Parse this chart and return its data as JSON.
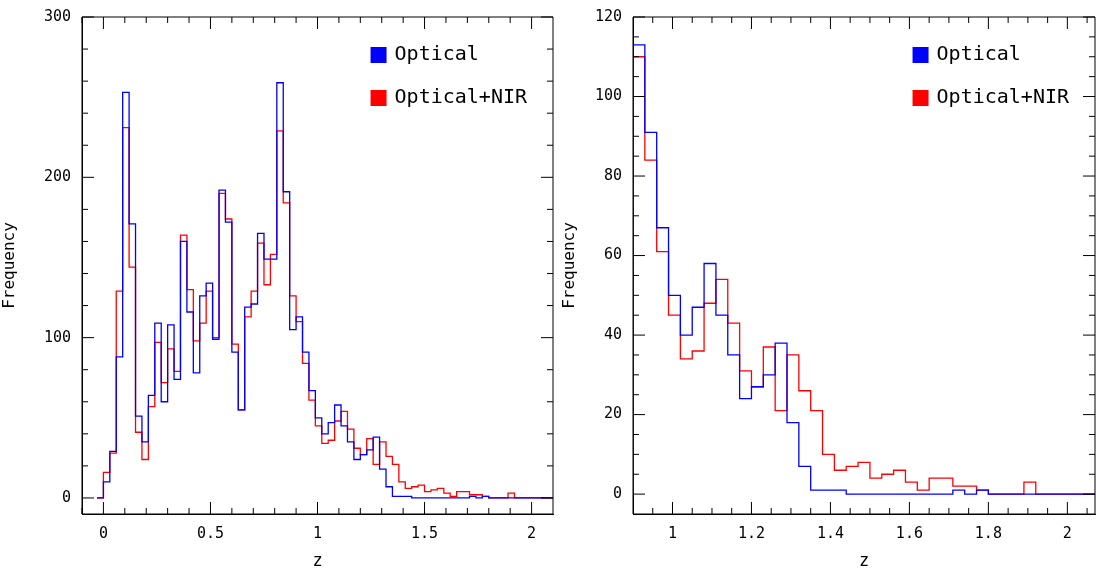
{
  "chart_data": [
    {
      "type": "histogram",
      "xlabel": "z",
      "ylabel": "Frequency",
      "legend": "top right",
      "grid": false,
      "bins": [
        -0.03,
        0,
        0.03,
        0.06,
        0.09,
        0.12,
        0.15,
        0.18,
        0.21,
        0.24,
        0.27,
        0.3,
        0.33,
        0.36,
        0.39,
        0.42,
        0.45,
        0.48,
        0.51,
        0.54,
        0.57,
        0.6,
        0.63,
        0.66,
        0.69,
        0.72,
        0.75,
        0.78,
        0.81,
        0.84,
        0.87,
        0.9,
        0.93,
        0.96,
        0.99,
        1.02,
        1.05,
        1.08,
        1.11,
        1.14,
        1.17,
        1.2,
        1.23,
        1.26,
        1.29,
        1.32,
        1.35,
        1.38,
        1.41,
        1.44,
        1.47,
        1.5,
        1.53,
        1.56,
        1.59,
        1.62,
        1.65,
        1.68,
        1.71,
        1.74,
        1.77,
        1.8,
        1.83,
        1.86,
        1.89,
        1.92,
        1.95,
        1.98,
        2.01,
        2.04,
        2.07,
        2.1
      ],
      "series": [
        {
          "name": "Optical",
          "color": "#0000ff",
          "values": [
            0,
            10,
            29,
            88,
            253,
            171,
            51,
            35,
            64,
            109,
            60,
            108,
            74,
            160,
            116,
            78,
            126,
            134,
            99,
            192,
            172,
            91,
            55,
            119,
            121,
            165,
            149,
            149,
            259,
            191,
            105,
            113,
            91,
            67,
            50,
            40,
            47,
            58,
            45,
            35,
            24,
            27,
            30,
            38,
            18,
            7,
            1,
            1,
            1,
            0,
            0,
            0,
            0,
            0,
            0,
            0,
            0,
            0,
            1,
            0,
            1,
            0,
            0,
            0,
            0,
            0,
            0,
            0,
            0,
            0,
            0
          ]
        },
        {
          "name": "Optical+NIR",
          "color": "#ff0000",
          "values": [
            0,
            16,
            28,
            129,
            231,
            144,
            41,
            24,
            57,
            97,
            72,
            93,
            79,
            164,
            130,
            98,
            109,
            129,
            100,
            190,
            174,
            96,
            55,
            113,
            129,
            159,
            133,
            152,
            229,
            184,
            126,
            110,
            84,
            61,
            45,
            34,
            36,
            48,
            54,
            43,
            31,
            27,
            37,
            21,
            35,
            26,
            21,
            10,
            6,
            7,
            8,
            4,
            5,
            6,
            3,
            1,
            4,
            4,
            2,
            2,
            1,
            0,
            0,
            0,
            3,
            0,
            0,
            0,
            0,
            0,
            0
          ]
        }
      ],
      "xlim": [
        -0.1,
        2.1
      ],
      "ylim": [
        -10,
        300
      ],
      "xticks": [
        {
          "value": -0.1,
          "label": null
        },
        0,
        {
          "value": 0.1,
          "label": null
        },
        {
          "value": 0.2,
          "label": null
        },
        {
          "value": 0.3,
          "label": null
        },
        {
          "value": 0.4,
          "label": null
        },
        0.5,
        {
          "value": 0.6,
          "label": null
        },
        {
          "value": 0.7,
          "label": null
        },
        {
          "value": 0.8,
          "label": null
        },
        {
          "value": 0.9,
          "label": null
        },
        1,
        {
          "value": 1.1,
          "label": null
        },
        {
          "value": 1.2,
          "label": null
        },
        {
          "value": 1.3,
          "label": null
        },
        {
          "value": 1.4,
          "label": null
        },
        1.5,
        {
          "value": 1.6,
          "label": null
        },
        {
          "value": 1.7,
          "label": null
        },
        {
          "value": 1.8,
          "label": null
        },
        {
          "value": 1.9,
          "label": null
        },
        2
      ],
      "yticks": [
        0,
        {
          "value": 20,
          "label": null
        },
        {
          "value": 40,
          "label": null
        },
        {
          "value": 60,
          "label": null
        },
        {
          "value": 80,
          "label": null
        },
        100,
        {
          "value": 120,
          "label": null
        },
        {
          "value": 140,
          "label": null
        },
        {
          "value": 160,
          "label": null
        },
        {
          "value": 180,
          "label": null
        },
        200,
        {
          "value": 220,
          "label": null
        },
        {
          "value": 240,
          "label": null
        },
        {
          "value": 260,
          "label": null
        },
        {
          "value": 280,
          "label": null
        },
        300
      ]
    },
    {
      "type": "histogram",
      "xlabel": "z",
      "ylabel": "Frequency",
      "legend": "top right",
      "grid": false,
      "bins": [
        0.9,
        0.93,
        0.96,
        0.99,
        1.02,
        1.05,
        1.08,
        1.11,
        1.14,
        1.17,
        1.2,
        1.23,
        1.26,
        1.29,
        1.32,
        1.35,
        1.38,
        1.41,
        1.44,
        1.47,
        1.5,
        1.53,
        1.56,
        1.59,
        1.62,
        1.65,
        1.68,
        1.71,
        1.74,
        1.77,
        1.8,
        1.83,
        1.86,
        1.89,
        1.92,
        1.95,
        1.98,
        2.01,
        2.04,
        2.07
      ],
      "series": [
        {
          "name": "Optical",
          "color": "#0000ff",
          "values": [
            113,
            91,
            67,
            50,
            40,
            47,
            58,
            45,
            35,
            24,
            27,
            30,
            38,
            18,
            7,
            1,
            1,
            1,
            0,
            0,
            0,
            0,
            0,
            0,
            0,
            0,
            0,
            1,
            0,
            1,
            0,
            0,
            0,
            0,
            0,
            0,
            0,
            0,
            0
          ]
        },
        {
          "name": "Optical+NIR",
          "color": "#ff0000",
          "values": [
            110,
            84,
            61,
            45,
            34,
            36,
            48,
            54,
            43,
            31,
            27,
            37,
            21,
            35,
            26,
            21,
            10,
            6,
            7,
            8,
            4,
            5,
            6,
            3,
            1,
            4,
            4,
            2,
            2,
            1,
            0,
            0,
            0,
            3,
            0,
            0,
            0,
            0,
            0
          ]
        }
      ],
      "xlim": [
        0.9,
        2.07
      ],
      "ylim": [
        -5,
        120
      ],
      "xticks": [
        {
          "value": 0.95,
          "label": null
        },
        1,
        {
          "value": 1.05,
          "label": null
        },
        {
          "value": 1.1,
          "label": null
        },
        {
          "value": 1.15,
          "label": null
        },
        1.2,
        {
          "value": 1.25,
          "label": null
        },
        {
          "value": 1.3,
          "label": null
        },
        {
          "value": 1.35,
          "label": null
        },
        1.4,
        {
          "value": 1.45,
          "label": null
        },
        {
          "value": 1.5,
          "label": null
        },
        {
          "value": 1.55,
          "label": null
        },
        1.6,
        {
          "value": 1.65,
          "label": null
        },
        {
          "value": 1.7,
          "label": null
        },
        {
          "value": 1.75,
          "label": null
        },
        1.8,
        {
          "value": 1.85,
          "label": null
        },
        {
          "value": 1.9,
          "label": null
        },
        {
          "value": 1.95,
          "label": null
        },
        2,
        {
          "value": 2.05,
          "label": null
        }
      ],
      "yticks": [
        0,
        {
          "value": 5,
          "label": null
        },
        {
          "value": 10,
          "label": null
        },
        {
          "value": 15,
          "label": null
        },
        20,
        {
          "value": 25,
          "label": null
        },
        {
          "value": 30,
          "label": null
        },
        {
          "value": 35,
          "label": null
        },
        40,
        {
          "value": 45,
          "label": null
        },
        {
          "value": 50,
          "label": null
        },
        {
          "value": 55,
          "label": null
        },
        60,
        {
          "value": 65,
          "label": null
        },
        {
          "value": 70,
          "label": null
        },
        {
          "value": 75,
          "label": null
        },
        80,
        {
          "value": 85,
          "label": null
        },
        {
          "value": 90,
          "label": null
        },
        {
          "value": 95,
          "label": null
        },
        100,
        {
          "value": 105,
          "label": null
        },
        {
          "value": 110,
          "label": null
        },
        {
          "value": 115,
          "label": null
        },
        120
      ]
    }
  ]
}
